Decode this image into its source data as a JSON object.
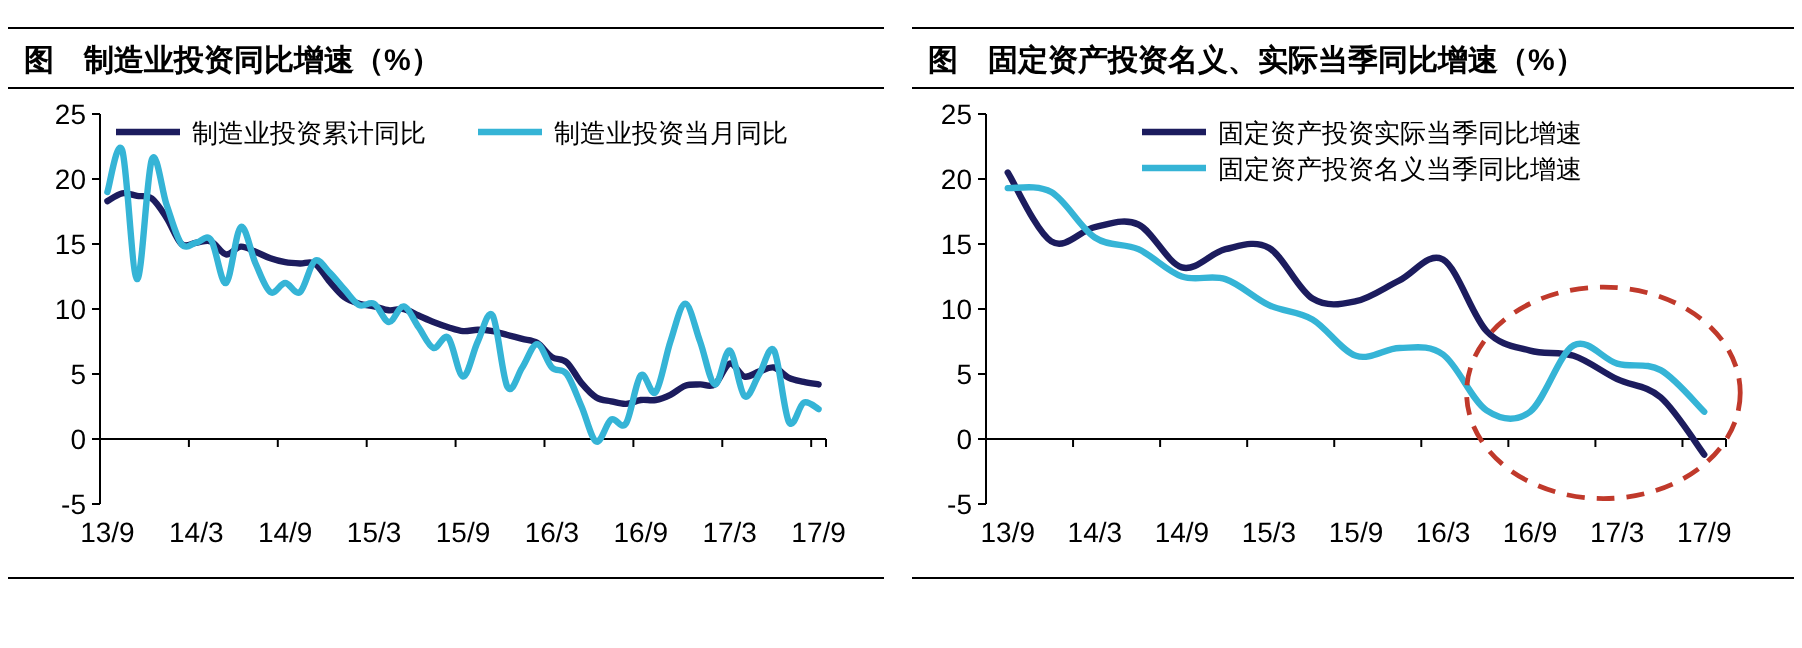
{
  "chart_data": [
    {
      "type": "line",
      "title": "图　制造业投资同比增速（%）",
      "legend": "top",
      "ylim": [
        -5,
        25
      ],
      "yticks": [
        -5,
        0,
        5,
        10,
        15,
        20,
        25
      ],
      "categories": [
        "13/9",
        null,
        null,
        null,
        null,
        null,
        "14/3",
        null,
        null,
        null,
        null,
        null,
        "14/9",
        null,
        null,
        null,
        null,
        null,
        "15/3",
        null,
        null,
        null,
        null,
        null,
        "15/9",
        null,
        null,
        null,
        null,
        null,
        "16/3",
        null,
        null,
        null,
        null,
        null,
        "16/9",
        null,
        null,
        null,
        null,
        null,
        "17/3",
        null,
        null,
        null,
        null,
        null,
        "17/9"
      ],
      "series": [
        {
          "name": "制造业投资累计同比",
          "color": "#1c1c5e",
          "values": [
            18.3,
            18.9,
            18.7,
            18.5,
            17.0,
            15.0,
            15.1,
            15.2,
            14.2,
            14.8,
            14.4,
            13.9,
            13.6,
            13.5,
            13.5,
            12.1,
            10.9,
            10.4,
            10.2,
            9.9,
            10.0,
            9.5,
            9.0,
            8.6,
            8.3,
            8.4,
            8.3,
            8.0,
            7.7,
            7.4,
            6.3,
            5.9,
            4.3,
            3.2,
            2.9,
            2.7,
            3.0,
            3.0,
            3.4,
            4.1,
            4.2,
            4.2,
            5.8,
            4.8,
            5.2,
            5.5,
            4.7,
            4.4,
            4.2
          ]
        },
        {
          "name": "制造业投资当月同比",
          "color": "#35b4d6",
          "values": [
            19.0,
            22.2,
            12.3,
            21.5,
            18.0,
            15.0,
            15.1,
            15.3,
            12.0,
            16.3,
            13.5,
            11.3,
            12.0,
            11.3,
            13.7,
            12.8,
            11.5,
            10.3,
            10.4,
            9.0,
            10.2,
            8.6,
            7.0,
            7.8,
            4.8,
            7.5,
            9.5,
            4.0,
            5.5,
            7.3,
            5.5,
            5.0,
            2.5,
            -0.2,
            1.5,
            1.2,
            4.9,
            3.6,
            7.5,
            10.4,
            7.5,
            4.2,
            6.8,
            3.3,
            5.0,
            6.8,
            1.3,
            2.8,
            2.3
          ]
        }
      ]
    },
    {
      "type": "line",
      "title": "图　固定资产投资名义、实际当季同比增速（%）",
      "legend": "top",
      "ylim": [
        -5,
        25
      ],
      "yticks": [
        -5,
        0,
        5,
        10,
        15,
        20,
        25
      ],
      "categories": [
        "13/9",
        null,
        "14/3",
        null,
        "14/9",
        null,
        "15/3",
        null,
        "15/9",
        null,
        "16/3",
        null,
        "16/9",
        null,
        "17/3",
        null,
        "17/9"
      ],
      "series": [
        {
          "name": "固定资产投资实际当季同比增速",
          "color": "#1c1c5e",
          "values": [
            20.5,
            15.2,
            16.3,
            16.5,
            13.2,
            14.6,
            14.7,
            10.8,
            10.6,
            12.2,
            13.8,
            8.3,
            6.8,
            6.4,
            4.6,
            3.2,
            -1.2
          ]
        },
        {
          "name": "固定资产投资名义当季同比增速",
          "color": "#35b4d6",
          "values": [
            19.3,
            19.0,
            15.5,
            14.6,
            12.5,
            12.3,
            10.3,
            9.2,
            6.4,
            7.0,
            6.5,
            2.2,
            2.1,
            7.2,
            5.8,
            5.3,
            2.1
          ]
        }
      ]
    }
  ]
}
